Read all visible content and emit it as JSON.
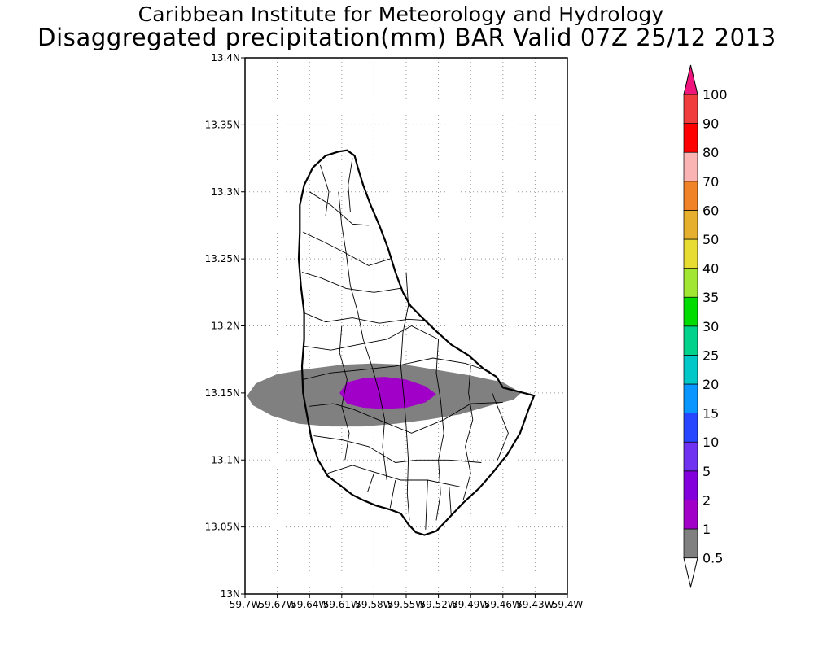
{
  "title": {
    "line1": "Caribbean Institute for Meteorology and Hydrology",
    "line2": "Disaggregated precipitation(mm) BAR Valid 07Z 25/12 2013"
  },
  "map": {
    "lon_range": [
      -59.7,
      -59.4
    ],
    "lat_range": [
      13.0,
      13.4
    ],
    "grid": true,
    "lat_ticks": [
      {
        "value": 13.0,
        "label": "13N"
      },
      {
        "value": 13.05,
        "label": "13.05N"
      },
      {
        "value": 13.1,
        "label": "13.1N"
      },
      {
        "value": 13.15,
        "label": "13.15N"
      },
      {
        "value": 13.2,
        "label": "13.2N"
      },
      {
        "value": 13.25,
        "label": "13.25N"
      },
      {
        "value": 13.3,
        "label": "13.3N"
      },
      {
        "value": 13.35,
        "label": "13.35N"
      },
      {
        "value": 13.4,
        "label": "13.4N"
      }
    ],
    "lon_ticks": [
      {
        "value": -59.7,
        "label": "59.7W"
      },
      {
        "value": -59.67,
        "label": "59.67W"
      },
      {
        "value": -59.64,
        "label": "59.64W"
      },
      {
        "value": -59.61,
        "label": "59.61W"
      },
      {
        "value": -59.58,
        "label": "59.58W"
      },
      {
        "value": -59.55,
        "label": "59.55W"
      },
      {
        "value": -59.52,
        "label": "59.52W"
      },
      {
        "value": -59.49,
        "label": "59.49W"
      },
      {
        "value": -59.46,
        "label": "59.46W"
      },
      {
        "value": -59.43,
        "label": "59.43W"
      },
      {
        "value": -59.4,
        "label": "59.4W"
      }
    ],
    "coastline": [
      [
        -59.613,
        13.33
      ],
      [
        -59.605,
        13.331
      ],
      [
        -59.598,
        13.327
      ],
      [
        -59.595,
        13.318
      ],
      [
        -59.59,
        13.305
      ],
      [
        -59.583,
        13.29
      ],
      [
        -59.575,
        13.275
      ],
      [
        -59.567,
        13.258
      ],
      [
        -59.56,
        13.24
      ],
      [
        -59.553,
        13.225
      ],
      [
        -59.546,
        13.215
      ],
      [
        -59.535,
        13.206
      ],
      [
        -59.522,
        13.196
      ],
      [
        -59.508,
        13.186
      ],
      [
        -59.492,
        13.178
      ],
      [
        -59.478,
        13.168
      ],
      [
        -59.466,
        13.162
      ],
      [
        -59.46,
        13.154
      ],
      [
        -59.431,
        13.148
      ],
      [
        -59.436,
        13.138
      ],
      [
        -59.444,
        13.12
      ],
      [
        -59.456,
        13.104
      ],
      [
        -59.47,
        13.09
      ],
      [
        -59.482,
        13.079
      ],
      [
        -59.497,
        13.068
      ],
      [
        -59.51,
        13.057
      ],
      [
        -59.522,
        13.047
      ],
      [
        -59.533,
        13.044
      ],
      [
        -59.541,
        13.046
      ],
      [
        -59.548,
        13.052
      ],
      [
        -59.555,
        13.06
      ],
      [
        -59.565,
        13.063
      ],
      [
        -59.578,
        13.066
      ],
      [
        -59.59,
        13.07
      ],
      [
        -59.6,
        13.074
      ],
      [
        -59.613,
        13.082
      ],
      [
        -59.623,
        13.088
      ],
      [
        -59.632,
        13.1
      ],
      [
        -59.638,
        13.115
      ],
      [
        -59.642,
        13.132
      ],
      [
        -59.646,
        13.15
      ],
      [
        -59.647,
        13.17
      ],
      [
        -59.645,
        13.19
      ],
      [
        -59.645,
        13.21
      ],
      [
        -59.648,
        13.23
      ],
      [
        -59.65,
        13.25
      ],
      [
        -59.649,
        13.27
      ],
      [
        -59.649,
        13.29
      ],
      [
        -59.645,
        13.305
      ],
      [
        -59.637,
        13.318
      ],
      [
        -59.625,
        13.327
      ],
      [
        -59.613,
        13.33
      ]
    ],
    "precipitation_areas": [
      {
        "level": 0.5,
        "color": "#808080",
        "polygon": [
          [
            -59.698,
            13.148
          ],
          [
            -59.69,
            13.157
          ],
          [
            -59.67,
            13.164
          ],
          [
            -59.64,
            13.168
          ],
          [
            -59.61,
            13.171
          ],
          [
            -59.58,
            13.172
          ],
          [
            -59.55,
            13.171
          ],
          [
            -59.52,
            13.167
          ],
          [
            -59.49,
            13.163
          ],
          [
            -59.46,
            13.158
          ],
          [
            -59.443,
            13.15
          ],
          [
            -59.45,
            13.145
          ],
          [
            -59.47,
            13.141
          ],
          [
            -59.5,
            13.134
          ],
          [
            -59.53,
            13.13
          ],
          [
            -59.56,
            13.127
          ],
          [
            -59.59,
            13.125
          ],
          [
            -59.62,
            13.125
          ],
          [
            -59.65,
            13.127
          ],
          [
            -59.675,
            13.133
          ],
          [
            -59.693,
            13.141
          ]
        ]
      },
      {
        "level": 1,
        "color": "#a000c8",
        "polygon": [
          [
            -59.612,
            13.15
          ],
          [
            -59.605,
            13.158
          ],
          [
            -59.59,
            13.161
          ],
          [
            -59.57,
            13.162
          ],
          [
            -59.55,
            13.16
          ],
          [
            -59.532,
            13.155
          ],
          [
            -59.522,
            13.149
          ],
          [
            -59.532,
            13.143
          ],
          [
            -59.55,
            13.139
          ],
          [
            -59.57,
            13.138
          ],
          [
            -59.59,
            13.139
          ],
          [
            -59.605,
            13.142
          ]
        ]
      }
    ],
    "boundaries": [
      [
        [
          -59.613,
          13.3
        ],
        [
          -59.61,
          13.275
        ],
        [
          -59.606,
          13.255
        ],
        [
          -59.602,
          13.23
        ],
        [
          -59.595,
          13.21
        ],
        [
          -59.59,
          13.19
        ],
        [
          -59.582,
          13.17
        ],
        [
          -59.575,
          13.15
        ],
        [
          -59.57,
          13.13
        ],
        [
          -59.572,
          13.11
        ],
        [
          -59.568,
          13.085
        ]
      ],
      [
        [
          -59.64,
          13.3
        ],
        [
          -59.62,
          13.29
        ],
        [
          -59.6,
          13.276
        ],
        [
          -59.585,
          13.275
        ]
      ],
      [
        [
          -59.646,
          13.27
        ],
        [
          -59.625,
          13.262
        ],
        [
          -59.608,
          13.255
        ],
        [
          -59.585,
          13.245
        ],
        [
          -59.565,
          13.25
        ]
      ],
      [
        [
          -59.647,
          13.24
        ],
        [
          -59.63,
          13.236
        ],
        [
          -59.606,
          13.228
        ],
        [
          -59.58,
          13.225
        ],
        [
          -59.556,
          13.228
        ]
      ],
      [
        [
          -59.646,
          13.21
        ],
        [
          -59.625,
          13.203
        ],
        [
          -59.6,
          13.206
        ],
        [
          -59.575,
          13.202
        ],
        [
          -59.548,
          13.205
        ],
        [
          -59.53,
          13.204
        ]
      ],
      [
        [
          -59.646,
          13.185
        ],
        [
          -59.62,
          13.182
        ],
        [
          -59.595,
          13.186
        ],
        [
          -59.568,
          13.19
        ],
        [
          -59.545,
          13.2
        ],
        [
          -59.52,
          13.19
        ]
      ],
      [
        [
          -59.646,
          13.16
        ],
        [
          -59.62,
          13.165
        ],
        [
          -59.595,
          13.167
        ],
        [
          -59.56,
          13.17
        ],
        [
          -59.525,
          13.176
        ],
        [
          -59.495,
          13.172
        ],
        [
          -59.472,
          13.166
        ]
      ],
      [
        [
          -59.64,
          13.14
        ],
        [
          -59.618,
          13.142
        ],
        [
          -59.6,
          13.138
        ],
        [
          -59.57,
          13.128
        ],
        [
          -59.545,
          13.12
        ],
        [
          -59.515,
          13.13
        ],
        [
          -59.49,
          13.142
        ],
        [
          -59.46,
          13.143
        ]
      ],
      [
        [
          -59.636,
          13.118
        ],
        [
          -59.61,
          13.115
        ],
        [
          -59.585,
          13.11
        ],
        [
          -59.56,
          13.098
        ],
        [
          -59.54,
          13.1
        ],
        [
          -59.51,
          13.1
        ],
        [
          -59.48,
          13.098
        ]
      ],
      [
        [
          -59.623,
          13.09
        ],
        [
          -59.6,
          13.096
        ],
        [
          -59.58,
          13.091
        ],
        [
          -59.555,
          13.085
        ],
        [
          -59.53,
          13.085
        ],
        [
          -59.5,
          13.08
        ]
      ],
      [
        [
          -59.55,
          13.24
        ],
        [
          -59.548,
          13.215
        ],
        [
          -59.553,
          13.195
        ],
        [
          -59.555,
          13.17
        ],
        [
          -59.552,
          13.145
        ],
        [
          -59.55,
          13.125
        ],
        [
          -59.548,
          13.1
        ],
        [
          -59.549,
          13.075
        ],
        [
          -59.547,
          13.055
        ]
      ],
      [
        [
          -59.52,
          13.19
        ],
        [
          -59.522,
          13.165
        ],
        [
          -59.518,
          13.145
        ],
        [
          -59.515,
          13.12
        ],
        [
          -59.52,
          13.1
        ],
        [
          -59.518,
          13.075
        ],
        [
          -59.522,
          13.055
        ]
      ],
      [
        [
          -59.49,
          13.17
        ],
        [
          -59.492,
          13.15
        ],
        [
          -59.488,
          13.13
        ],
        [
          -59.495,
          13.11
        ],
        [
          -59.49,
          13.09
        ],
        [
          -59.497,
          13.07
        ]
      ],
      [
        [
          -59.63,
          13.32
        ],
        [
          -59.622,
          13.3
        ],
        [
          -59.625,
          13.282
        ]
      ],
      [
        [
          -59.6,
          13.325
        ],
        [
          -59.604,
          13.305
        ],
        [
          -59.602,
          13.285
        ]
      ],
      [
        [
          -59.61,
          13.2
        ],
        [
          -59.612,
          13.18
        ],
        [
          -59.605,
          13.16
        ],
        [
          -59.61,
          13.14
        ],
        [
          -59.603,
          13.12
        ],
        [
          -59.607,
          13.1
        ]
      ],
      [
        [
          -59.58,
          13.09
        ],
        [
          -59.586,
          13.076
        ]
      ],
      [
        [
          -59.56,
          13.085
        ],
        [
          -59.565,
          13.064
        ]
      ],
      [
        [
          -59.53,
          13.085
        ],
        [
          -59.532,
          13.048
        ]
      ],
      [
        [
          -59.51,
          13.08
        ],
        [
          -59.508,
          13.058
        ]
      ],
      [
        [
          -59.47,
          13.15
        ],
        [
          -59.455,
          13.12
        ],
        [
          -59.465,
          13.1
        ]
      ]
    ]
  },
  "colorbar": {
    "levels": [
      {
        "label": "0.5",
        "color": "#ffffff"
      },
      {
        "label": "1",
        "color": "#808080"
      },
      {
        "label": "2",
        "color": "#a000c8"
      },
      {
        "label": "5",
        "color": "#8200dc"
      },
      {
        "label": "10",
        "color": "#6e32f0"
      },
      {
        "label": "15",
        "color": "#2846ff"
      },
      {
        "label": "20",
        "color": "#0a96ff"
      },
      {
        "label": "25",
        "color": "#00c8c8"
      },
      {
        "label": "30",
        "color": "#00d28c"
      },
      {
        "label": "35",
        "color": "#00dc00"
      },
      {
        "label": "40",
        "color": "#a0e632"
      },
      {
        "label": "50",
        "color": "#e6dc32"
      },
      {
        "label": "60",
        "color": "#e6af2d"
      },
      {
        "label": "70",
        "color": "#f08228"
      },
      {
        "label": "80",
        "color": "#fab4b4"
      },
      {
        "label": "90",
        "color": "#ff0000"
      },
      {
        "label": "100",
        "color": "#f03c3c"
      }
    ],
    "top_color": "#f0147d"
  }
}
